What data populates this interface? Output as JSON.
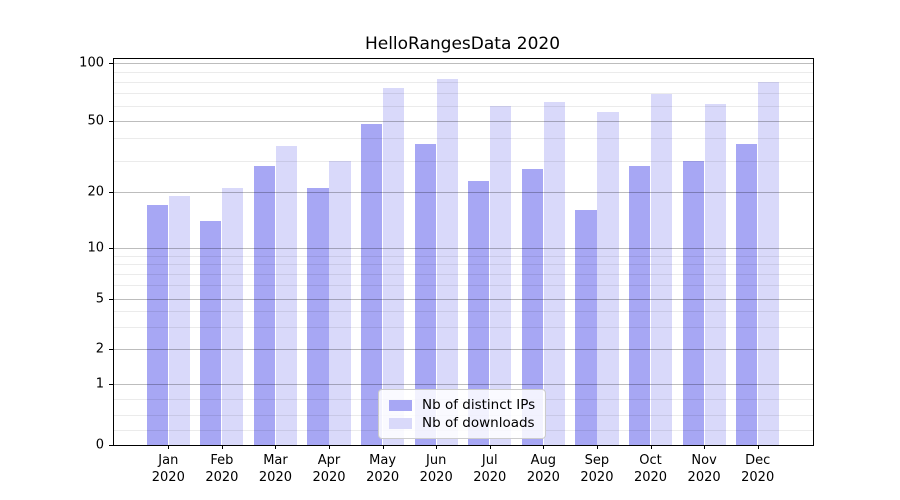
{
  "title": "HelloRangesData 2020",
  "chart_data": {
    "type": "bar",
    "title": "HelloRangesData 2020",
    "categories": [
      "Jan 2020",
      "Feb 2020",
      "Mar 2020",
      "Apr 2020",
      "May 2020",
      "Jun 2020",
      "Jul 2020",
      "Aug 2020",
      "Sep 2020",
      "Oct 2020",
      "Nov 2020",
      "Dec 2020"
    ],
    "series": [
      {
        "name": "Nb of distinct IPs",
        "color": "#a7a7f4",
        "values": [
          17,
          14,
          28,
          21,
          48,
          37,
          23,
          27,
          16,
          28,
          30,
          37
        ]
      },
      {
        "name": "Nb of downloads",
        "color": "#d9d9fa",
        "values": [
          19,
          21,
          36,
          30,
          74,
          83,
          60,
          63,
          56,
          69,
          61,
          80
        ]
      }
    ],
    "yscale": "symlog (log above 1, linear 0-1)",
    "y_ticks": [
      0,
      1,
      2,
      5,
      10,
      20,
      50,
      100
    ],
    "y_minor_gridlines": [
      0.25,
      0.5,
      0.75,
      3,
      4,
      6,
      7,
      8,
      9,
      30,
      40,
      60,
      70,
      80,
      90
    ],
    "ylim": [
      0,
      105
    ],
    "xlabel": "",
    "ylabel": "",
    "grid": true,
    "grid_above_bars": true,
    "legend": {
      "position": "lower center",
      "entries": [
        "Nb of distinct IPs",
        "Nb of downloads"
      ]
    },
    "colors": {
      "major_grid": "#bdbdbd",
      "minor_grid": "#ebebeb",
      "spine": "#000000",
      "text": "#000000",
      "background": "#ffffff"
    }
  }
}
